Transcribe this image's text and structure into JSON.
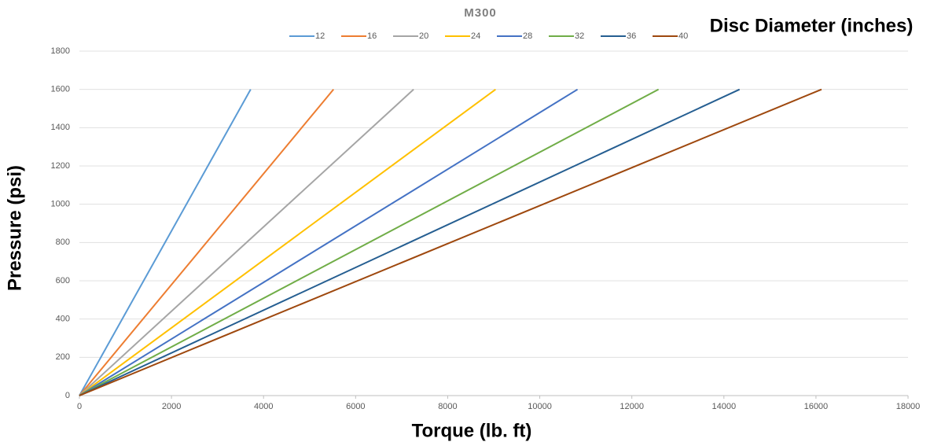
{
  "chart_data": {
    "type": "line",
    "title": "M300",
    "legend_title": "Disc Diameter (inches)",
    "xlabel": "Torque (lb. ft)",
    "ylabel": "Pressure (psi)",
    "series": [
      {
        "name": "12",
        "color": "#5b9bd5",
        "x": [
          0,
          3720
        ],
        "values": [
          0,
          1600
        ]
      },
      {
        "name": "16",
        "color": "#ed7d31",
        "x": [
          0,
          5520
        ],
        "values": [
          0,
          1600
        ]
      },
      {
        "name": "20",
        "color": "#a5a5a5",
        "x": [
          0,
          7260
        ],
        "values": [
          0,
          1600
        ]
      },
      {
        "name": "24",
        "color": "#ffc000",
        "x": [
          0,
          9040
        ],
        "values": [
          0,
          1600
        ]
      },
      {
        "name": "28",
        "color": "#4472c4",
        "x": [
          0,
          10820
        ],
        "values": [
          0,
          1600
        ]
      },
      {
        "name": "32",
        "color": "#70ad47",
        "x": [
          0,
          12580
        ],
        "values": [
          0,
          1600
        ]
      },
      {
        "name": "36",
        "color": "#255e91",
        "x": [
          0,
          14340
        ],
        "values": [
          0,
          1600
        ]
      },
      {
        "name": "40",
        "color": "#9e480e",
        "x": [
          0,
          16120
        ],
        "values": [
          0,
          1600
        ]
      }
    ],
    "xlim": [
      0,
      18000
    ],
    "xticks": [
      0,
      2000,
      4000,
      6000,
      8000,
      10000,
      12000,
      14000,
      16000,
      18000
    ],
    "ylim": [
      0,
      1800
    ],
    "yticks": [
      0,
      200,
      400,
      600,
      800,
      1000,
      1200,
      1400,
      1600,
      1800
    ],
    "grid": true
  }
}
